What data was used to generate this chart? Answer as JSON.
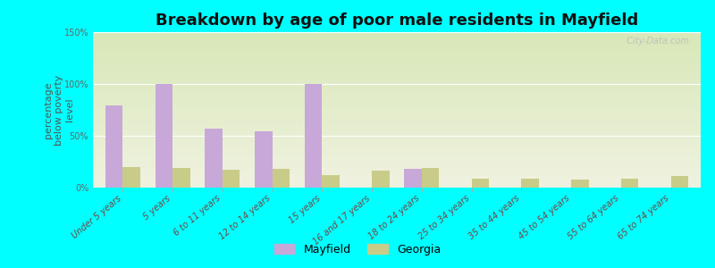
{
  "title": "Breakdown by age of poor male residents in Mayfield",
  "ylabel": "percentage\nbelow poverty\nlevel",
  "categories": [
    "Under 5 years",
    "5 years",
    "6 to 11 years",
    "12 to 14 years",
    "15 years",
    "16 and 17 years",
    "18 to 24 years",
    "25 to 34 years",
    "35 to 44 years",
    "45 to 54 years",
    "55 to 64 years",
    "65 to 74 years"
  ],
  "mayfield_values": [
    79,
    100,
    57,
    54,
    100,
    0,
    18,
    0,
    0,
    0,
    0,
    0
  ],
  "georgia_values": [
    20,
    19,
    17,
    18,
    12,
    16,
    19,
    9,
    9,
    8,
    9,
    11
  ],
  "mayfield_color": "#c8a8d8",
  "georgia_color": "#c8cc88",
  "ylim": [
    0,
    150
  ],
  "yticks": [
    0,
    50,
    100,
    150
  ],
  "ytick_labels": [
    "0%",
    "50%",
    "100%",
    "150%"
  ],
  "bg_top_color": "#d8e8b8",
  "bg_bottom_color": "#f0f2e0",
  "outer_bg": "#00ffff",
  "bar_width": 0.35,
  "title_fontsize": 13,
  "ylabel_fontsize": 8,
  "tick_fontsize": 7,
  "legend_fontsize": 9,
  "watermark": "  City-Data.com"
}
